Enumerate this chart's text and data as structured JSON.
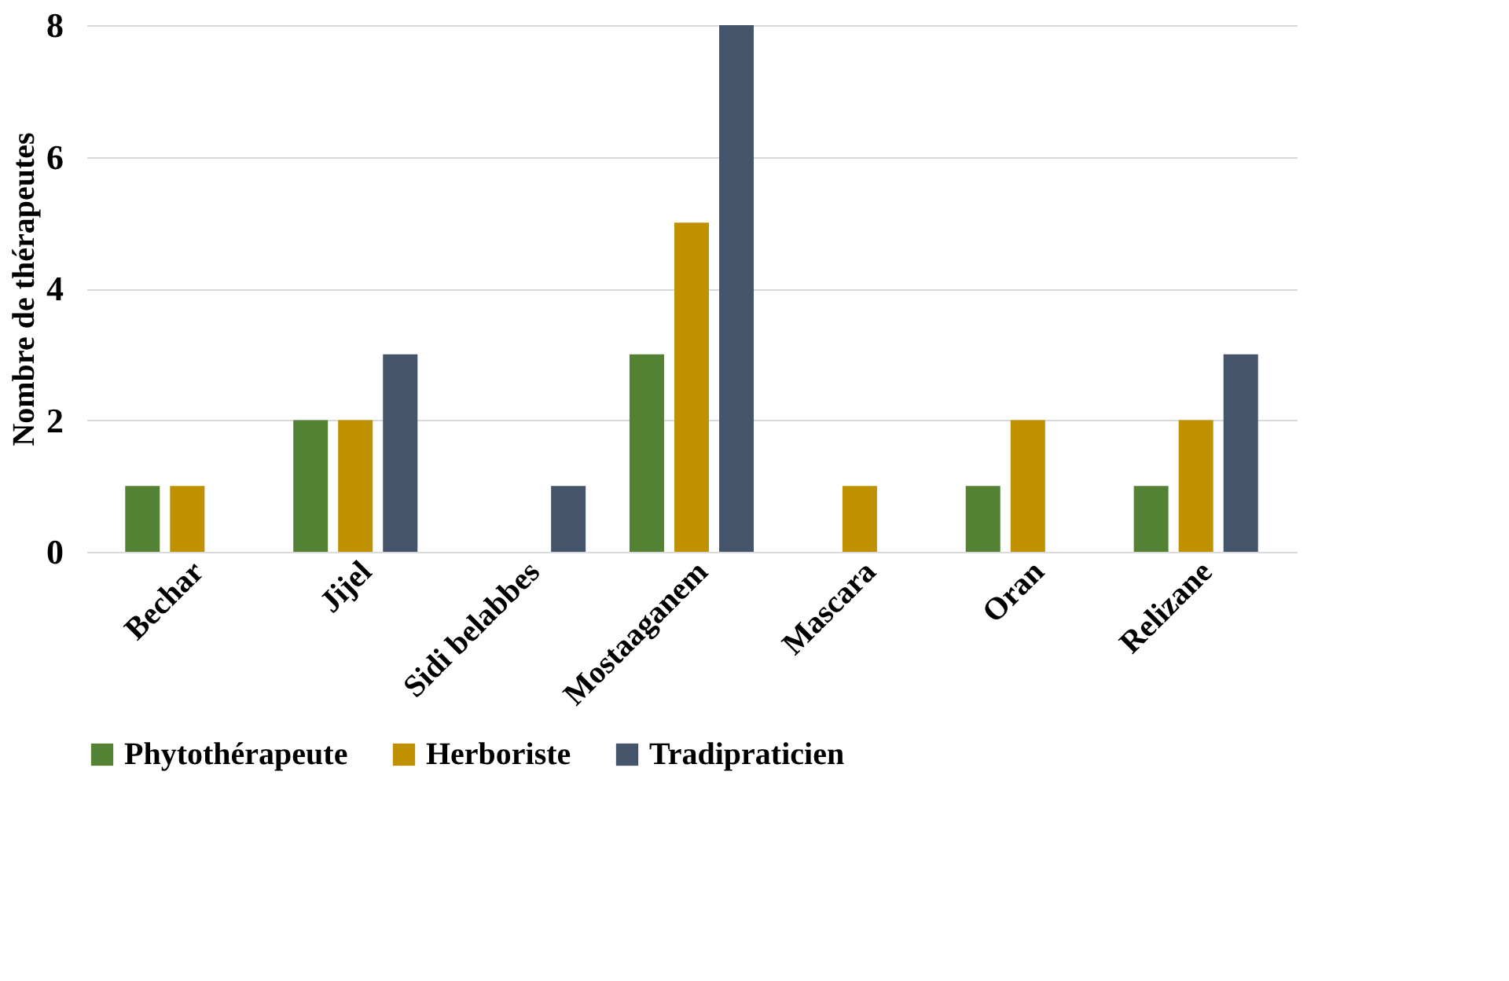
{
  "chart_data": {
    "type": "bar",
    "ylabel": "Nombre de thérapeutes",
    "categories": [
      "Bechar",
      "Jijel",
      "Sidi belabbes",
      "Mostaaganem",
      "Mascara",
      "Oran",
      "Relizane"
    ],
    "series": [
      {
        "name": "Phytothérapeute",
        "color": "#548235",
        "values": [
          1,
          2,
          0,
          3,
          0,
          1,
          1
        ]
      },
      {
        "name": "Herboriste",
        "color": "#bf9000",
        "values": [
          1,
          2,
          0,
          5,
          1,
          2,
          2
        ]
      },
      {
        "name": "Tradipraticien",
        "color": "#44546a",
        "values": [
          0,
          3,
          1,
          8,
          0,
          0,
          3
        ]
      }
    ],
    "ylim": [
      0,
      8
    ],
    "yticks": [
      0,
      2,
      4,
      6,
      8
    ],
    "grid": "y",
    "legend": "bottom"
  }
}
